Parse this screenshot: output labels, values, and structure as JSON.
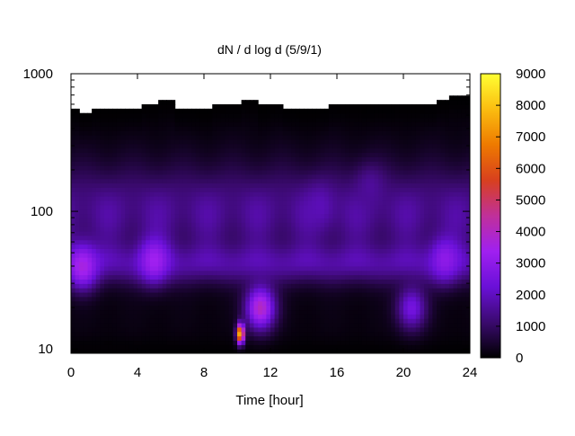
{
  "chart_data": {
    "type": "heatmap",
    "title": "dN / d log d (5/9/1)",
    "xlabel": "Time [hour]",
    "ylabel": "",
    "xlim": [
      0,
      24
    ],
    "ylim": [
      9.3,
      1000
    ],
    "y_scale": "log",
    "x_ticks": [
      0,
      4,
      8,
      12,
      16,
      20,
      24
    ],
    "x_tick_labels": [
      "0",
      "4",
      "8",
      "12",
      "16",
      "20",
      "24"
    ],
    "y_ticks": [
      10,
      100,
      1000
    ],
    "y_tick_labels": [
      "10",
      "100",
      "1000"
    ],
    "colorbar": {
      "range": [
        0,
        9000
      ],
      "ticks": [
        0,
        1000,
        2000,
        3000,
        4000,
        5000,
        6000,
        7000,
        8000,
        9000
      ],
      "tick_labels": [
        "0",
        "1000",
        "2000",
        "3000",
        "4000",
        "5000",
        "6000",
        "7000",
        "8000",
        "9000"
      ],
      "colormap": [
        "#000000",
        "#3a0a6e",
        "#6a10d8",
        "#a020f0",
        "#c0309a",
        "#d8401e",
        "#ee7a00",
        "#fbbd10",
        "#ffff33"
      ]
    },
    "grid": false,
    "legend": "none",
    "background_above_data": "#ffffff",
    "data_ceiling_d": {
      "hours": [
        0,
        0.6,
        1.2,
        3.5,
        4.3,
        5.3,
        6.2,
        8.6,
        10.2,
        11.3,
        12.0,
        12.8,
        15.6,
        17.5,
        19.5,
        22.0,
        22.8,
        24
      ],
      "d": [
        560,
        520,
        560,
        560,
        600,
        640,
        560,
        600,
        650,
        580,
        600,
        560,
        600,
        580,
        600,
        640,
        680,
        600
      ]
    },
    "features": [
      {
        "hour": 10.2,
        "d": 13.0,
        "value": 8500,
        "note": "narrow peak"
      },
      {
        "hour": 0.7,
        "d": 40,
        "value": 3600
      },
      {
        "hour": 5.0,
        "d": 44,
        "value": 3400
      },
      {
        "hour": 11.4,
        "d": 20,
        "value": 4000
      },
      {
        "hour": 22.5,
        "d": 45,
        "value": 3000
      },
      {
        "hour": 15.0,
        "d": 110,
        "value": 1900
      },
      {
        "hour": 20.5,
        "d": 20,
        "value": 2500
      },
      {
        "hour": 18.0,
        "d": 150,
        "value": 1600
      },
      {
        "hour": 2.0,
        "d": 10.5,
        "value": 50,
        "note": "low-count floor"
      }
    ]
  }
}
